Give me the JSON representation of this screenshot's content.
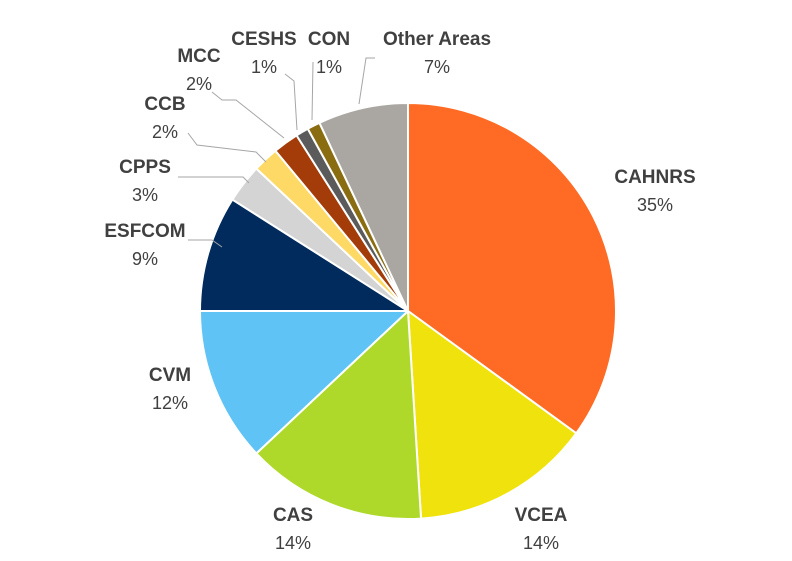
{
  "chart_data": {
    "type": "pie",
    "categories": [
      "CAHNRS",
      "VCEA",
      "CAS",
      "CVM",
      "ESFCOM",
      "CPPS",
      "CCB",
      "MCC",
      "CESHS",
      "CON",
      "Other Areas"
    ],
    "values": [
      35,
      14,
      14,
      12,
      9,
      3,
      2,
      2,
      1,
      1,
      7
    ],
    "value_labels": [
      "35%",
      "14%",
      "14%",
      "12%",
      "9%",
      "3%",
      "2%",
      "2%",
      "1%",
      "1%",
      "7%"
    ],
    "colors": [
      "#ff6b24",
      "#f0e20c",
      "#aed92a",
      "#5fc3f5",
      "#002b5c",
      "#d4d4d4",
      "#ffd966",
      "#a33c08",
      "#5b5b5b",
      "#8a6d10",
      "#aaa6a2"
    ],
    "start_angle_deg": 0,
    "direction": "clockwise",
    "title": "",
    "legend": "none"
  }
}
